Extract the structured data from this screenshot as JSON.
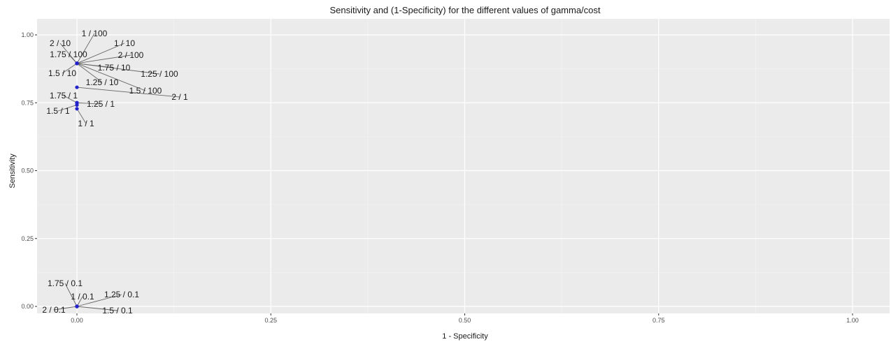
{
  "chart_data": {
    "type": "scatter",
    "title": "Sensitivity and (1-Specificity) for the different values of gamma/cost",
    "xlabel": "1 - Specificity",
    "ylabel": "Sensitivity",
    "xlim": [
      -0.05,
      1.05
    ],
    "ylim": [
      -0.02,
      1.03
    ],
    "xticks": [
      0.0,
      0.25,
      0.5,
      0.75,
      1.0
    ],
    "xtick_labels": [
      "0.00",
      "0.25",
      "0.50",
      "0.75",
      "1.00"
    ],
    "yticks": [
      0.0,
      0.25,
      0.5,
      0.75,
      1.0
    ],
    "ytick_labels": [
      "0.00",
      "0.25",
      "0.50",
      "0.75",
      "1.00"
    ],
    "grid": true,
    "point_color": "#2222cc",
    "panel_color": "#ebebeb",
    "points": [
      {
        "label": "1 / 100",
        "x": 0.0,
        "y": 0.895
      },
      {
        "label": "2 / 10",
        "x": 0.0,
        "y": 0.895
      },
      {
        "label": "1 / 10",
        "x": 0.0,
        "y": 0.895
      },
      {
        "label": "1.75 / 100",
        "x": 0.0,
        "y": 0.895
      },
      {
        "label": "2 / 100",
        "x": 0.0,
        "y": 0.895
      },
      {
        "label": "1.5 / 10",
        "x": 0.0,
        "y": 0.895
      },
      {
        "label": "1.75 / 10",
        "x": 0.0,
        "y": 0.895
      },
      {
        "label": "1.25 / 100",
        "x": 0.0,
        "y": 0.895
      },
      {
        "label": "1.25 / 10",
        "x": 0.0,
        "y": 0.895
      },
      {
        "label": "1.5 / 100",
        "x": 0.0,
        "y": 0.895
      },
      {
        "label": "2 / 1",
        "x": 0.0,
        "y": 0.807
      },
      {
        "label": "1.75 / 1",
        "x": 0.0,
        "y": 0.75
      },
      {
        "label": "1.25 / 1",
        "x": 0.0,
        "y": 0.75
      },
      {
        "label": "1.5 / 1",
        "x": 0.0,
        "y": 0.742
      },
      {
        "label": "1 / 1",
        "x": 0.0,
        "y": 0.728
      },
      {
        "label": "1.75 / 0.1",
        "x": 0.0,
        "y": 0.0
      },
      {
        "label": "1 / 0.1",
        "x": 0.0,
        "y": 0.0
      },
      {
        "label": "1.25 / 0.1",
        "x": 0.0,
        "y": 0.0
      },
      {
        "label": "2 / 0.1",
        "x": 0.0,
        "y": 0.0
      },
      {
        "label": "1.5 / 0.1",
        "x": 0.0,
        "y": 0.0
      }
    ]
  }
}
